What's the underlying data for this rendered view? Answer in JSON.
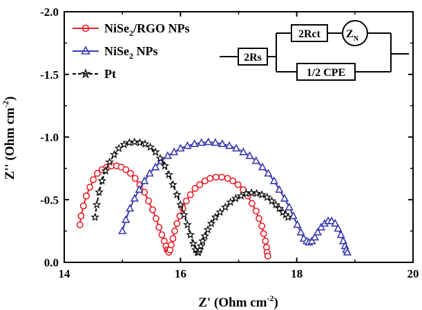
{
  "chart_data": {
    "type": "scatter",
    "xlabel": "Z' (Ohm cm",
    "xlabel_sup": "-2",
    "xlabel_end": ")",
    "ylabel": "Z'' (Ohm cm",
    "ylabel_sup": "-2",
    "ylabel_end": ")",
    "xlim": [
      14,
      20
    ],
    "ylim": [
      0.0,
      -2.0
    ],
    "y_inverted": true,
    "xticks": [
      "14",
      "16",
      "18",
      "20"
    ],
    "yticks": [
      "0.0",
      "-0.5",
      "-1.0",
      "-1.5",
      "-2.0"
    ],
    "legend_placement": "top-left",
    "grid": false,
    "series": [
      {
        "name": "NiSe",
        "name_sub": "2",
        "name_end": "/RGO NPs",
        "color": "#e8202a",
        "marker": "circle",
        "x": [
          14.27,
          14.29,
          14.33,
          14.38,
          14.44,
          14.5,
          14.57,
          14.65,
          14.73,
          14.81,
          14.9,
          14.98,
          15.06,
          15.14,
          15.22,
          15.3,
          15.38,
          15.45,
          15.52,
          15.58,
          15.63,
          15.68,
          15.72,
          15.75,
          15.77,
          15.79,
          15.8,
          15.82,
          15.84,
          15.87,
          15.9,
          15.94,
          15.99,
          16.04,
          16.1,
          16.17,
          16.25,
          16.33,
          16.42,
          16.51,
          16.61,
          16.71,
          16.81,
          16.9,
          16.99,
          17.08,
          17.16,
          17.23,
          17.3,
          17.35,
          17.4,
          17.43,
          17.46,
          17.48,
          17.49,
          17.5
        ],
        "y": [
          -0.3,
          -0.37,
          -0.45,
          -0.53,
          -0.6,
          -0.66,
          -0.71,
          -0.74,
          -0.76,
          -0.77,
          -0.77,
          -0.76,
          -0.74,
          -0.71,
          -0.67,
          -0.62,
          -0.56,
          -0.49,
          -0.42,
          -0.35,
          -0.28,
          -0.22,
          -0.17,
          -0.13,
          -0.1,
          -0.09,
          -0.08,
          -0.1,
          -0.14,
          -0.19,
          -0.25,
          -0.31,
          -0.37,
          -0.43,
          -0.49,
          -0.54,
          -0.59,
          -0.62,
          -0.65,
          -0.67,
          -0.68,
          -0.68,
          -0.67,
          -0.65,
          -0.62,
          -0.58,
          -0.53,
          -0.47,
          -0.41,
          -0.35,
          -0.29,
          -0.23,
          -0.17,
          -0.12,
          -0.08,
          -0.05
        ]
      },
      {
        "name": "NiSe",
        "name_sub": "2",
        "name_end": " NPs",
        "color": "#3a3ab0",
        "marker": "triangle",
        "x": [
          15.0,
          15.06,
          15.13,
          15.21,
          15.29,
          15.38,
          15.47,
          15.57,
          15.67,
          15.78,
          15.89,
          16.0,
          16.12,
          16.24,
          16.36,
          16.48,
          16.6,
          16.72,
          16.84,
          16.96,
          17.08,
          17.19,
          17.3,
          17.41,
          17.51,
          17.61,
          17.7,
          17.79,
          17.87,
          17.94,
          18.01,
          18.07,
          18.12,
          18.17,
          18.21,
          18.26,
          18.31,
          18.36,
          18.42,
          18.48,
          18.54,
          18.6,
          18.66,
          18.71,
          18.76,
          18.8,
          18.83,
          18.85,
          18.87
        ],
        "y": [
          -0.25,
          -0.34,
          -0.43,
          -0.51,
          -0.58,
          -0.65,
          -0.71,
          -0.76,
          -0.81,
          -0.85,
          -0.88,
          -0.91,
          -0.93,
          -0.945,
          -0.955,
          -0.96,
          -0.955,
          -0.945,
          -0.93,
          -0.91,
          -0.88,
          -0.85,
          -0.81,
          -0.76,
          -0.71,
          -0.65,
          -0.58,
          -0.51,
          -0.44,
          -0.37,
          -0.3,
          -0.24,
          -0.19,
          -0.17,
          -0.16,
          -0.17,
          -0.2,
          -0.24,
          -0.28,
          -0.31,
          -0.33,
          -0.33,
          -0.31,
          -0.27,
          -0.22,
          -0.17,
          -0.13,
          -0.1,
          -0.08
        ]
      },
      {
        "name": "Pt",
        "name_sub": "",
        "name_end": "",
        "color": "#000000",
        "marker": "star",
        "x": [
          14.53,
          14.56,
          14.6,
          14.65,
          14.71,
          14.78,
          14.86,
          14.94,
          15.03,
          15.12,
          15.21,
          15.3,
          15.39,
          15.48,
          15.57,
          15.65,
          15.73,
          15.8,
          15.87,
          15.94,
          16.0,
          16.06,
          16.12,
          16.17,
          16.22,
          16.26,
          16.29,
          16.31,
          16.33,
          16.35,
          16.38,
          16.42,
          16.47,
          16.53,
          16.6,
          16.68,
          16.77,
          16.86,
          16.95,
          17.04,
          17.13,
          17.22,
          17.31,
          17.4,
          17.49,
          17.57,
          17.64,
          17.7,
          17.76,
          17.81,
          17.85
        ],
        "y": [
          -0.36,
          -0.46,
          -0.56,
          -0.65,
          -0.73,
          -0.8,
          -0.86,
          -0.91,
          -0.94,
          -0.955,
          -0.96,
          -0.955,
          -0.945,
          -0.92,
          -0.88,
          -0.83,
          -0.77,
          -0.7,
          -0.62,
          -0.54,
          -0.46,
          -0.38,
          -0.3,
          -0.22,
          -0.15,
          -0.1,
          -0.08,
          -0.08,
          -0.1,
          -0.13,
          -0.17,
          -0.21,
          -0.26,
          -0.31,
          -0.36,
          -0.4,
          -0.44,
          -0.48,
          -0.51,
          -0.53,
          -0.55,
          -0.555,
          -0.55,
          -0.54,
          -0.52,
          -0.49,
          -0.46,
          -0.43,
          -0.4,
          -0.38,
          -0.36
        ]
      }
    ],
    "inset_circuit": {
      "rs_label": "2Rs",
      "rct_label": "2Rct",
      "zn_label": "Z",
      "zn_sub": "N",
      "cpe_label": "1/2 CPE"
    }
  }
}
